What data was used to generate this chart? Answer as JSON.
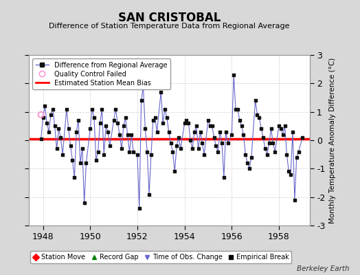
{
  "title": "SAN CRISTOBAL",
  "subtitle": "Difference of Station Temperature Data from Regional Average",
  "ylabel": "Monthly Temperature Anomaly Difference (°C)",
  "xlabel_years": [
    1948,
    1950,
    1952,
    1954,
    1956,
    1958
  ],
  "xlim": [
    1947.4,
    1959.3
  ],
  "ylim": [
    -3,
    3
  ],
  "yticks": [
    -3,
    -2,
    -1,
    0,
    1,
    2,
    3
  ],
  "bias_value": 0.05,
  "background_color": "#d8d8d8",
  "plot_bg_color": "#ffffff",
  "line_color": "#6666cc",
  "dot_color": "#111111",
  "bias_color": "#ff0000",
  "qc_color": "#ff88cc",
  "watermark": "Berkeley Earth",
  "data_x": [
    1947.917,
    1948.0,
    1948.083,
    1948.167,
    1948.25,
    1948.333,
    1948.417,
    1948.5,
    1948.583,
    1948.667,
    1948.75,
    1948.833,
    1949.0,
    1949.083,
    1949.167,
    1949.25,
    1949.333,
    1949.417,
    1949.5,
    1949.583,
    1949.667,
    1949.75,
    1949.833,
    1950.0,
    1950.083,
    1950.167,
    1950.25,
    1950.333,
    1950.417,
    1950.5,
    1950.583,
    1950.667,
    1950.75,
    1950.833,
    1951.0,
    1951.083,
    1951.167,
    1951.25,
    1951.333,
    1951.417,
    1951.5,
    1951.583,
    1951.667,
    1951.75,
    1951.833,
    1952.0,
    1952.083,
    1952.167,
    1952.25,
    1952.333,
    1952.417,
    1952.5,
    1952.583,
    1952.667,
    1952.75,
    1952.833,
    1953.0,
    1953.083,
    1953.167,
    1953.25,
    1953.333,
    1953.417,
    1953.5,
    1953.583,
    1953.667,
    1953.75,
    1953.833,
    1954.0,
    1954.083,
    1954.167,
    1954.25,
    1954.333,
    1954.417,
    1954.5,
    1954.583,
    1954.667,
    1954.75,
    1954.833,
    1955.0,
    1955.083,
    1955.167,
    1955.25,
    1955.333,
    1955.417,
    1955.5,
    1955.583,
    1955.667,
    1955.75,
    1955.833,
    1956.0,
    1956.083,
    1956.167,
    1956.25,
    1956.333,
    1956.417,
    1956.5,
    1956.583,
    1956.667,
    1956.75,
    1956.833,
    1957.0,
    1957.083,
    1957.167,
    1957.25,
    1957.333,
    1957.417,
    1957.5,
    1957.583,
    1957.667,
    1957.75,
    1957.833,
    1958.0,
    1958.083,
    1958.167,
    1958.25,
    1958.333,
    1958.417,
    1958.5,
    1958.583,
    1958.667,
    1958.75,
    1958.833,
    1959.0
  ],
  "data_y": [
    0.05,
    0.8,
    1.2,
    0.6,
    0.3,
    0.9,
    1.1,
    0.5,
    -0.3,
    0.4,
    0.1,
    -0.5,
    1.1,
    0.4,
    -0.2,
    -0.7,
    -1.3,
    0.3,
    0.7,
    -0.8,
    -0.3,
    -2.2,
    -0.8,
    0.4,
    1.1,
    0.8,
    -0.7,
    -0.4,
    0.6,
    1.1,
    -0.5,
    0.5,
    0.3,
    -0.2,
    0.7,
    1.1,
    0.6,
    0.2,
    -0.3,
    0.5,
    0.8,
    0.2,
    -0.4,
    0.2,
    -0.4,
    -0.5,
    -2.4,
    1.4,
    1.9,
    0.4,
    -0.4,
    -1.9,
    -0.5,
    0.7,
    0.8,
    0.3,
    1.7,
    0.6,
    1.1,
    0.8,
    0.3,
    -0.1,
    -0.4,
    -1.1,
    -0.2,
    0.1,
    -0.3,
    0.6,
    0.7,
    0.6,
    0.0,
    -0.3,
    0.3,
    0.5,
    -0.3,
    0.3,
    -0.1,
    -0.5,
    0.7,
    0.5,
    0.5,
    0.1,
    -0.2,
    -0.4,
    0.3,
    -0.1,
    -1.3,
    0.3,
    -0.1,
    0.2,
    2.3,
    1.1,
    1.1,
    0.7,
    0.5,
    0.2,
    -0.5,
    -0.8,
    -1.0,
    -0.6,
    1.4,
    0.9,
    0.8,
    0.4,
    0.1,
    -0.3,
    -0.5,
    -0.1,
    0.4,
    -0.1,
    -0.4,
    0.5,
    0.4,
    0.2,
    0.5,
    -0.5,
    -1.1,
    -1.2,
    0.3,
    -2.1,
    -0.6,
    -0.4,
    0.1
  ],
  "qc_failed_x": [
    1947.917
  ],
  "qc_failed_y": [
    0.9
  ]
}
